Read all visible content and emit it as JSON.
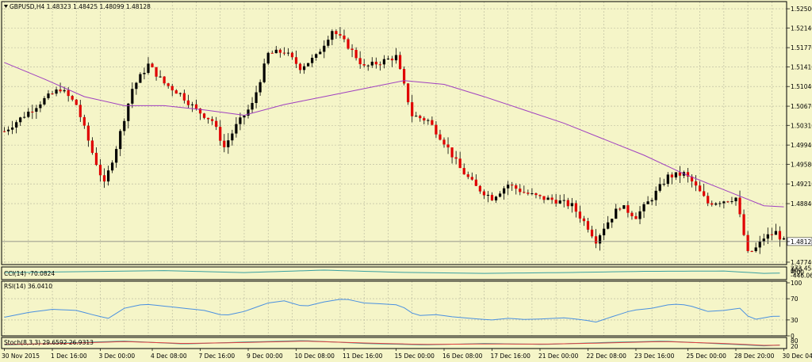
{
  "colors": {
    "background": "#f5f5c8",
    "grid": "#b4b49a",
    "bull": "#000000",
    "bear": "#e00000",
    "wick": "#000000",
    "ma": "#a040c0",
    "cci": "#3aa0a0",
    "rsi": "#4a90e0",
    "stoch_main": "#3aa0a0",
    "stoch_signal": "#e04040",
    "price_line": "#777777",
    "text": "#000000"
  },
  "chart_data": [
    {
      "type": "candlestick",
      "title": "GBPUSD,H4  1.48323 1.48425 1.48099 1.48128",
      "symbol": "GBPUSD,H4",
      "ohlc_header": "1.48323 1.48425 1.48099 1.48128",
      "y_ticks": [
        "1.52500",
        "1.52140",
        "1.51770",
        "1.51410",
        "1.51040",
        "1.50670",
        "1.50310",
        "1.49940",
        "1.49580",
        "1.49210",
        "1.48840",
        "1.48128",
        "1.47740"
      ],
      "y_tick_values": [
        1.525,
        1.5214,
        1.5177,
        1.5141,
        1.5104,
        1.5067,
        1.5031,
        1.4994,
        1.4958,
        1.4921,
        1.4884,
        1.48128,
        1.4774
      ],
      "ylim": [
        1.4771,
        1.5262
      ],
      "current_price": "1.48128",
      "current_price_value": 1.48128,
      "x_labels": [
        "30 Nov 2015",
        "1 Dec 16:00",
        "3 Dec 00:00",
        "4 Dec 08:00",
        "7 Dec 16:00",
        "9 Dec 00:00",
        "10 Dec 08:00",
        "11 Dec 16:00",
        "15 Dec 00:00",
        "16 Dec 08:00",
        "17 Dec 16:00",
        "21 Dec 00:00",
        "22 Dec 08:00",
        "23 Dec 16:00",
        "25 Dec 00:00",
        "28 Dec 20:00",
        "30 Dec 04:00"
      ],
      "price_path": [
        [
          0,
          1.502
        ],
        [
          5,
          1.505
        ],
        [
          10,
          1.508
        ],
        [
          14,
          1.51
        ],
        [
          18,
          1.507
        ],
        [
          22,
          1.498
        ],
        [
          25,
          1.492
        ],
        [
          28,
          1.499
        ],
        [
          32,
          1.51
        ],
        [
          36,
          1.5145
        ],
        [
          40,
          1.511
        ],
        [
          44,
          1.509
        ],
        [
          48,
          1.506
        ],
        [
          52,
          1.504
        ],
        [
          55,
          1.499
        ],
        [
          58,
          1.503
        ],
        [
          62,
          1.507
        ],
        [
          66,
          1.5165
        ],
        [
          70,
          1.517
        ],
        [
          74,
          1.514
        ],
        [
          78,
          1.516
        ],
        [
          82,
          1.521
        ],
        [
          86,
          1.518
        ],
        [
          90,
          1.514
        ],
        [
          94,
          1.515
        ],
        [
          98,
          1.516
        ],
        [
          102,
          1.505
        ],
        [
          106,
          1.504
        ],
        [
          110,
          1.5
        ],
        [
          114,
          1.495
        ],
        [
          118,
          1.4915
        ],
        [
          122,
          1.4895
        ],
        [
          126,
          1.492
        ],
        [
          130,
          1.4905
        ],
        [
          134,
          1.4895
        ],
        [
          138,
          1.489
        ],
        [
          142,
          1.488
        ],
        [
          146,
          1.484
        ],
        [
          148,
          1.4815
        ],
        [
          150,
          1.484
        ],
        [
          154,
          1.488
        ],
        [
          158,
          1.486
        ],
        [
          162,
          1.4895
        ],
        [
          166,
          1.4935
        ],
        [
          170,
          1.494
        ],
        [
          172,
          1.4925
        ],
        [
          176,
          1.4885
        ],
        [
          180,
          1.489
        ],
        [
          183,
          1.4895
        ],
        [
          186,
          1.479
        ],
        [
          188,
          1.48
        ],
        [
          190,
          1.482
        ],
        [
          193,
          1.483
        ],
        [
          195,
          1.4813
        ]
      ],
      "moving_average": [
        [
          0,
          1.5149
        ],
        [
          10,
          1.5118
        ],
        [
          20,
          1.5085
        ],
        [
          30,
          1.5068
        ],
        [
          40,
          1.5068
        ],
        [
          50,
          1.506
        ],
        [
          60,
          1.505
        ],
        [
          70,
          1.507
        ],
        [
          80,
          1.5085
        ],
        [
          90,
          1.51
        ],
        [
          100,
          1.5115
        ],
        [
          110,
          1.5108
        ],
        [
          120,
          1.5085
        ],
        [
          130,
          1.506
        ],
        [
          140,
          1.5035
        ],
        [
          150,
          1.5005
        ],
        [
          160,
          1.4975
        ],
        [
          170,
          1.494
        ],
        [
          180,
          1.491
        ],
        [
          190,
          1.488
        ],
        [
          195,
          1.4878
        ]
      ]
    },
    {
      "type": "line",
      "title": "CCI(14) -70.0824",
      "y_ticks": [
        "273.458",
        "100",
        "0",
        "-100",
        "-446.061"
      ],
      "y_tick_values": [
        273.458,
        100,
        0,
        -100,
        -446.061
      ],
      "ylim": [
        -446.061,
        273.458
      ],
      "series": [
        {
          "name": "CCI(14)",
          "points": [
            [
              0,
              -40
            ],
            [
              20,
              20
            ],
            [
              40,
              90
            ],
            [
              60,
              -40
            ],
            [
              80,
              120
            ],
            [
              100,
              -30
            ],
            [
              120,
              -90
            ],
            [
              140,
              -40
            ],
            [
              160,
              40
            ],
            [
              180,
              60
            ],
            [
              190,
              -90
            ],
            [
              195,
              -70
            ]
          ]
        }
      ]
    },
    {
      "type": "line",
      "title": "RSI(14) 36.0410",
      "y_ticks": [
        "100",
        "70",
        "30",
        "0"
      ],
      "y_tick_values": [
        100,
        70,
        30,
        0
      ],
      "ylim": [
        0,
        100
      ],
      "series": [
        {
          "name": "RSI(14)",
          "points": [
            [
              0,
              35
            ],
            [
              6,
              44
            ],
            [
              12,
              50
            ],
            [
              18,
              48
            ],
            [
              23,
              38
            ],
            [
              26,
              33
            ],
            [
              30,
              52
            ],
            [
              35,
              60
            ],
            [
              40,
              56
            ],
            [
              45,
              52
            ],
            [
              50,
              48
            ],
            [
              55,
              38
            ],
            [
              60,
              46
            ],
            [
              66,
              62
            ],
            [
              70,
              66
            ],
            [
              75,
              55
            ],
            [
              80,
              64
            ],
            [
              85,
              70
            ],
            [
              90,
              62
            ],
            [
              95,
              60
            ],
            [
              99,
              58
            ],
            [
              103,
              38
            ],
            [
              108,
              40
            ],
            [
              112,
              36
            ],
            [
              118,
              32
            ],
            [
              122,
              30
            ],
            [
              126,
              33
            ],
            [
              130,
              31
            ],
            [
              135,
              32
            ],
            [
              140,
              34
            ],
            [
              145,
              30
            ],
            [
              148,
              26
            ],
            [
              152,
              36
            ],
            [
              157,
              48
            ],
            [
              162,
              52
            ],
            [
              167,
              60
            ],
            [
              171,
              58
            ],
            [
              176,
              46
            ],
            [
              180,
              48
            ],
            [
              184,
              52
            ],
            [
              187,
              30
            ],
            [
              190,
              34
            ],
            [
              193,
              38
            ],
            [
              195,
              36
            ]
          ]
        }
      ]
    },
    {
      "type": "line",
      "title": "Stoch(8,3,3) 29.6592 26.9313",
      "y_ticks": [
        "80",
        "20"
      ],
      "y_tick_values": [
        80,
        20
      ],
      "ylim": [
        0,
        100
      ],
      "series": [
        {
          "name": "Stoch main",
          "points": [
            [
              0,
              30
            ],
            [
              15,
              50
            ],
            [
              30,
              70
            ],
            [
              45,
              40
            ],
            [
              60,
              60
            ],
            [
              75,
              75
            ],
            [
              90,
              45
            ],
            [
              105,
              30
            ],
            [
              120,
              45
            ],
            [
              135,
              35
            ],
            [
              150,
              55
            ],
            [
              165,
              70
            ],
            [
              180,
              40
            ],
            [
              190,
              20
            ],
            [
              195,
              30
            ]
          ]
        },
        {
          "name": "Stoch signal",
          "points": [
            [
              0,
              35
            ],
            [
              15,
              45
            ],
            [
              30,
              65
            ],
            [
              45,
              45
            ],
            [
              60,
              55
            ],
            [
              75,
              70
            ],
            [
              90,
              50
            ],
            [
              105,
              35
            ],
            [
              120,
              40
            ],
            [
              135,
              38
            ],
            [
              150,
              50
            ],
            [
              165,
              65
            ],
            [
              180,
              45
            ],
            [
              190,
              25
            ],
            [
              195,
              27
            ]
          ]
        }
      ]
    }
  ]
}
